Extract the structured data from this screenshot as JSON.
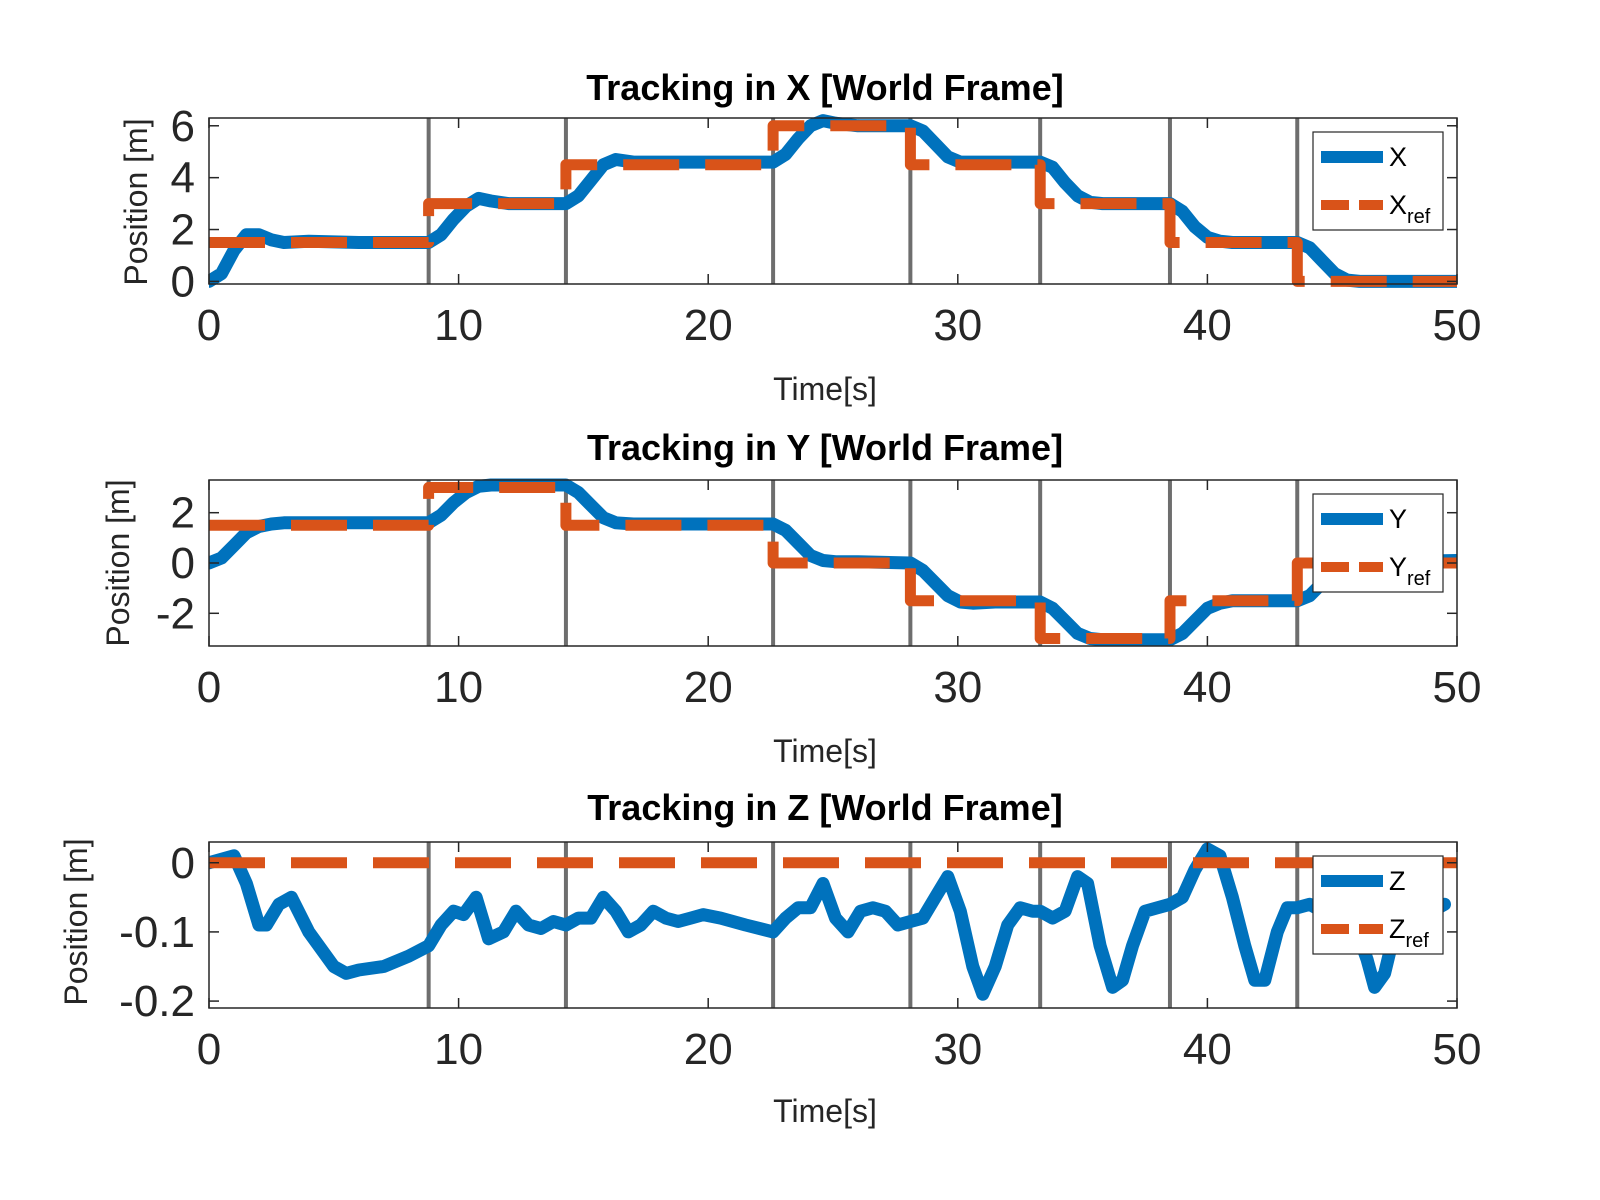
{
  "figure": {
    "background": "#ffffff"
  },
  "colors": {
    "measured": "#0072BD",
    "reference": "#D95319",
    "event_line": "#555555",
    "axis": "#262626"
  },
  "chart_data": [
    {
      "type": "line",
      "title": "Tracking in X [World Frame]",
      "xlabel": "Time[s]",
      "ylabel": "Position [m]",
      "xlim": [
        0,
        50
      ],
      "ylim": [
        -0.1,
        6.3
      ],
      "xticks": [
        "0",
        "10",
        "20",
        "30",
        "40",
        "50"
      ],
      "xtick_values": [
        0,
        10,
        20,
        30,
        40,
        50
      ],
      "yticks": [
        "0",
        "2",
        "4",
        "6"
      ],
      "ytick_values": [
        0,
        2,
        4,
        6
      ],
      "grid": false,
      "legend_position": "top-right",
      "event_times": [
        8.8,
        14.3,
        22.6,
        28.1,
        33.3,
        38.5,
        43.6
      ],
      "series": [
        {
          "name": "X",
          "subscript": "",
          "style": "solid",
          "color": "#0072BD",
          "x": [
            0,
            0.5,
            1,
            1.5,
            2,
            2.5,
            3,
            4,
            6,
            8,
            8.8,
            9.3,
            9.8,
            10.3,
            10.8,
            11.3,
            12,
            13,
            14.3,
            14.8,
            15.3,
            15.8,
            16.3,
            17,
            18,
            20,
            22.6,
            23.1,
            23.6,
            24.1,
            24.6,
            25.1,
            26,
            27,
            28.1,
            28.6,
            29.1,
            29.6,
            30.1,
            30.6,
            31.5,
            33.3,
            33.8,
            34.3,
            34.8,
            35.3,
            35.8,
            36.5,
            38.5,
            39,
            39.5,
            40,
            40.5,
            41,
            41.5,
            43.6,
            44.1,
            44.6,
            45.1,
            45.6,
            46.1,
            47,
            50
          ],
          "y": [
            0,
            0.3,
            1.2,
            1.8,
            1.8,
            1.6,
            1.5,
            1.55,
            1.5,
            1.5,
            1.5,
            1.8,
            2.4,
            2.9,
            3.2,
            3.1,
            3.0,
            3.0,
            3.0,
            3.3,
            3.9,
            4.5,
            4.7,
            4.6,
            4.6,
            4.6,
            4.6,
            4.9,
            5.5,
            6.0,
            6.2,
            6.1,
            6.0,
            6.0,
            6.0,
            5.8,
            5.3,
            4.8,
            4.6,
            4.6,
            4.6,
            4.6,
            4.4,
            3.8,
            3.3,
            3.05,
            3.0,
            3.0,
            3.0,
            2.7,
            2.1,
            1.7,
            1.55,
            1.5,
            1.5,
            1.5,
            1.3,
            0.8,
            0.3,
            0.05,
            0,
            0,
            0
          ]
        },
        {
          "name": "X",
          "subscript": "ref",
          "style": "dashed",
          "color": "#D95319",
          "x": [
            0,
            8.8,
            8.8,
            14.3,
            14.3,
            22.6,
            22.6,
            28.1,
            28.1,
            33.3,
            33.3,
            38.5,
            38.5,
            43.6,
            43.6,
            50
          ],
          "y": [
            1.5,
            1.5,
            3.0,
            3.0,
            4.5,
            4.5,
            6.0,
            6.0,
            4.5,
            4.5,
            3.0,
            3.0,
            1.5,
            1.5,
            0,
            0
          ]
        }
      ]
    },
    {
      "type": "line",
      "title": "Tracking in Y [World Frame]",
      "xlabel": "Time[s]",
      "ylabel": "Position [m]",
      "xlim": [
        0,
        50
      ],
      "ylim": [
        -3.3,
        3.3
      ],
      "xticks": [
        "0",
        "10",
        "20",
        "30",
        "40",
        "50"
      ],
      "xtick_values": [
        0,
        10,
        20,
        30,
        40,
        50
      ],
      "yticks": [
        "2",
        "0",
        "-2"
      ],
      "ytick_values": [
        2,
        0,
        -2
      ],
      "grid": false,
      "legend_position": "top-right",
      "event_times": [
        8.8,
        14.3,
        22.6,
        28.1,
        33.3,
        38.5,
        43.6
      ],
      "series": [
        {
          "name": "Y",
          "subscript": "",
          "style": "solid",
          "color": "#0072BD",
          "x": [
            0,
            0.5,
            1,
            1.5,
            2,
            2.5,
            3,
            5,
            8.8,
            9.3,
            9.8,
            10.3,
            10.8,
            11.3,
            12,
            14.3,
            14.8,
            15.3,
            15.8,
            16.3,
            17,
            20,
            22.6,
            23.1,
            23.6,
            24.1,
            24.6,
            25.1,
            26,
            28.1,
            28.6,
            29.1,
            29.6,
            30.1,
            30.6,
            31.5,
            33.3,
            33.8,
            34.3,
            34.8,
            35.3,
            35.8,
            36.5,
            38.5,
            39,
            39.5,
            40,
            40.5,
            41,
            41.5,
            43.6,
            44.1,
            44.6,
            45.1,
            45.6,
            46.1,
            47,
            50
          ],
          "y": [
            0,
            0.2,
            0.7,
            1.2,
            1.45,
            1.55,
            1.6,
            1.6,
            1.6,
            1.9,
            2.4,
            2.8,
            3.05,
            3.1,
            3.1,
            3.1,
            2.8,
            2.3,
            1.8,
            1.6,
            1.55,
            1.55,
            1.55,
            1.3,
            0.8,
            0.3,
            0.1,
            0.05,
            0.05,
            0,
            -0.3,
            -0.8,
            -1.3,
            -1.55,
            -1.6,
            -1.55,
            -1.55,
            -1.8,
            -2.3,
            -2.8,
            -3.0,
            -3.05,
            -3.05,
            -3.05,
            -2.8,
            -2.3,
            -1.8,
            -1.6,
            -1.5,
            -1.5,
            -1.5,
            -1.3,
            -0.8,
            -0.3,
            0,
            0.1,
            0.05,
            0.1
          ]
        },
        {
          "name": "Y",
          "subscript": "ref",
          "style": "dashed",
          "color": "#D95319",
          "x": [
            0,
            8.8,
            8.8,
            14.3,
            14.3,
            22.6,
            22.6,
            28.1,
            28.1,
            33.3,
            33.3,
            38.5,
            38.5,
            43.6,
            43.6,
            50
          ],
          "y": [
            1.5,
            1.5,
            3.0,
            3.0,
            1.5,
            1.5,
            0,
            0,
            -1.5,
            -1.5,
            -3.0,
            -3.0,
            -1.5,
            -1.5,
            0,
            0
          ]
        }
      ]
    },
    {
      "type": "line",
      "title": "Tracking in Z [World Frame]",
      "xlabel": "Time[s]",
      "ylabel": "Position [m]",
      "xlim": [
        0,
        50
      ],
      "ylim": [
        -0.21,
        0.03
      ],
      "xticks": [
        "0",
        "10",
        "20",
        "30",
        "40",
        "50"
      ],
      "xtick_values": [
        0,
        10,
        20,
        30,
        40,
        50
      ],
      "yticks": [
        "0",
        "-0.1",
        "-0.2"
      ],
      "ytick_values": [
        0,
        -0.1,
        -0.2
      ],
      "grid": false,
      "legend_position": "top-right",
      "event_times": [
        8.8,
        14.3,
        22.6,
        28.1,
        33.3,
        38.5,
        43.6
      ],
      "series": [
        {
          "name": "Z",
          "subscript": "",
          "style": "solid",
          "color": "#0072BD",
          "x": [
            0,
            0.5,
            1,
            1.5,
            2,
            2.3,
            2.8,
            3.3,
            4,
            5,
            5.5,
            6,
            7,
            8,
            8.8,
            9.3,
            9.8,
            10.2,
            10.7,
            11.2,
            11.8,
            12.3,
            12.8,
            13.3,
            13.8,
            14.3,
            14.8,
            15.3,
            15.8,
            16.3,
            16.8,
            17.3,
            17.8,
            18.3,
            18.8,
            19.3,
            19.8,
            20.5,
            21.5,
            22.6,
            23.1,
            23.6,
            24.1,
            24.6,
            25.1,
            25.6,
            26.1,
            26.6,
            27.1,
            27.6,
            28.1,
            28.6,
            29.1,
            29.6,
            30.1,
            30.6,
            31,
            31.5,
            32,
            32.5,
            33,
            33.3,
            33.8,
            34.3,
            34.8,
            35.2,
            35.7,
            36.2,
            36.6,
            37,
            37.5,
            38,
            38.5,
            39,
            39.5,
            40,
            40.5,
            41,
            41.5,
            41.9,
            42.3,
            42.8,
            43.2,
            43.6,
            44.1,
            44.6,
            45,
            45.5,
            46,
            46.4,
            46.7,
            47.1,
            47.5,
            48,
            48.5,
            49,
            49.5
          ],
          "y": [
            0,
            0.005,
            0.01,
            -0.03,
            -0.09,
            -0.09,
            -0.06,
            -0.05,
            -0.1,
            -0.15,
            -0.16,
            -0.155,
            -0.15,
            -0.135,
            -0.12,
            -0.09,
            -0.07,
            -0.075,
            -0.05,
            -0.11,
            -0.1,
            -0.07,
            -0.09,
            -0.095,
            -0.085,
            -0.09,
            -0.08,
            -0.08,
            -0.05,
            -0.07,
            -0.1,
            -0.09,
            -0.07,
            -0.08,
            -0.085,
            -0.08,
            -0.075,
            -0.08,
            -0.09,
            -0.1,
            -0.08,
            -0.065,
            -0.065,
            -0.03,
            -0.08,
            -0.1,
            -0.07,
            -0.065,
            -0.07,
            -0.09,
            -0.085,
            -0.08,
            -0.05,
            -0.02,
            -0.07,
            -0.15,
            -0.19,
            -0.15,
            -0.09,
            -0.065,
            -0.07,
            -0.07,
            -0.08,
            -0.07,
            -0.02,
            -0.03,
            -0.12,
            -0.18,
            -0.17,
            -0.12,
            -0.07,
            -0.065,
            -0.06,
            -0.05,
            -0.01,
            0.02,
            0.01,
            -0.05,
            -0.12,
            -0.17,
            -0.17,
            -0.1,
            -0.065,
            -0.065,
            -0.06,
            -0.07,
            -0.09,
            -0.1,
            -0.1,
            -0.14,
            -0.18,
            -0.16,
            -0.1,
            -0.06,
            -0.06,
            -0.07,
            -0.06
          ]
        },
        {
          "name": "Z",
          "subscript": "ref",
          "style": "dashed",
          "color": "#D95319",
          "x": [
            0,
            50
          ],
          "y": [
            0,
            0
          ]
        }
      ]
    }
  ]
}
